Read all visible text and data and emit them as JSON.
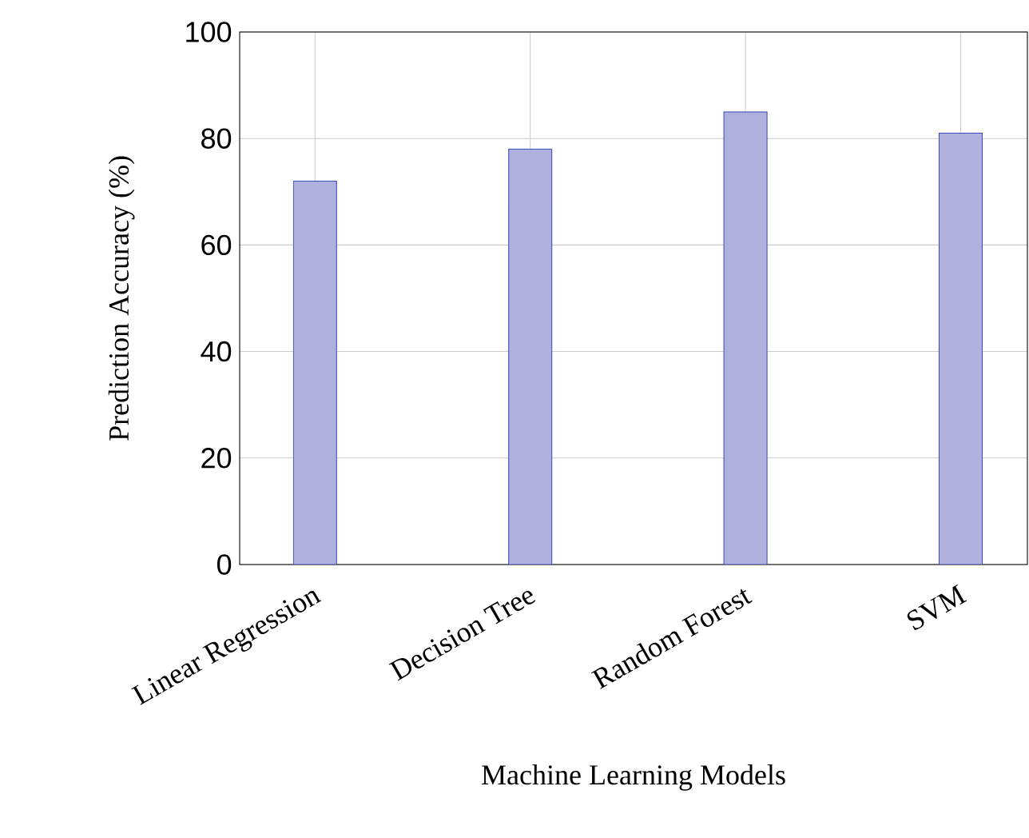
{
  "chart_data": {
    "type": "bar",
    "xlabel": "Machine Learning Models",
    "ylabel": "Prediction Accuracy (%)",
    "categories": [
      "Linear Regression",
      "Decision Tree",
      "Random Forest",
      "SVM"
    ],
    "values": [
      72,
      78,
      85,
      81
    ],
    "color": "#b0b0dc",
    "ylim": [
      0,
      100
    ],
    "yticks": [
      0,
      20,
      40,
      60,
      80,
      100
    ],
    "grid": true
  }
}
